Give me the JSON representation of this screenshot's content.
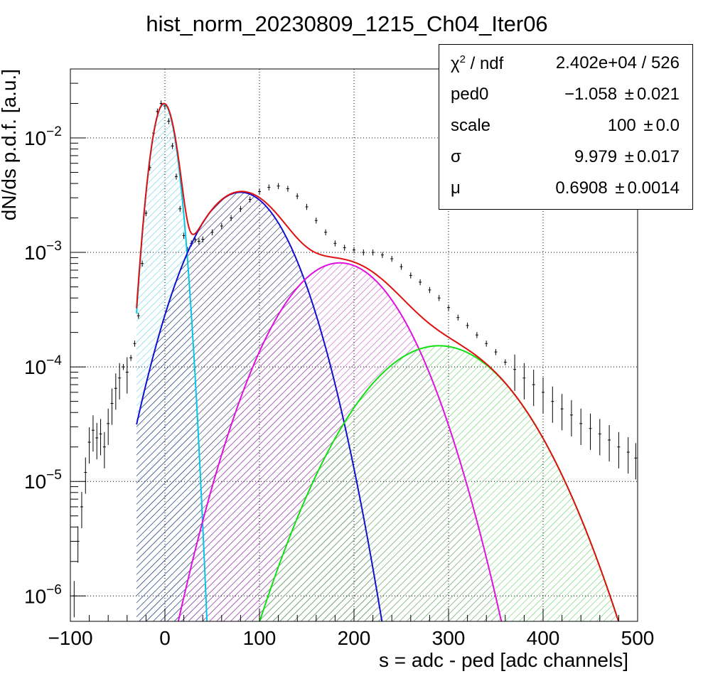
{
  "chart_data": {
    "type": "histogram-fit",
    "title": "hist_norm_20230809_1215_Ch04_Iter06",
    "xlabel": "s = adc - ped [adc channels]",
    "ylabel": "dN/ds p.d.f. [a.u.]",
    "xlim": [
      -100,
      500
    ],
    "ylim": [
      6e-07,
      0.04
    ],
    "y_scale": "log",
    "grid": true,
    "x_ticks": [
      "−100",
      "0",
      "100",
      "200",
      "300",
      "400",
      "500"
    ],
    "x_tick_values": [
      -100,
      0,
      100,
      200,
      300,
      400,
      500
    ],
    "y_ticks": [
      {
        "value": 0.01,
        "mantissa": "10",
        "exp": "−2"
      },
      {
        "value": 0.001,
        "mantissa": "10",
        "exp": "−3"
      },
      {
        "value": 0.0001,
        "mantissa": "10",
        "exp": "−4"
      },
      {
        "value": 1e-05,
        "mantissa": "10",
        "exp": "−5"
      },
      {
        "value": 1e-06,
        "mantissa": "10",
        "exp": "−6"
      }
    ],
    "stats": [
      {
        "key": "χ",
        "key_sup": "2",
        "key_rest": " / ndf",
        "value": "2.402e+04 / 526",
        "err": ""
      },
      {
        "key": "ped0",
        "key_sup": "",
        "key_rest": "",
        "value": "−1.058",
        "err": "0.021"
      },
      {
        "key": "scale",
        "key_sup": "",
        "key_rest": "",
        "value": "100",
        "err": "0.0"
      },
      {
        "key": "σ",
        "key_sup": "",
        "key_rest": "",
        "value": "9.979",
        "err": "0.017"
      },
      {
        "key": "μ",
        "key_sup": "",
        "key_rest": "",
        "value": "0.6908",
        "err": "0.0014"
      }
    ],
    "data_points": [
      [
        -96,
        1e-06
      ],
      [
        -92,
        3e-06
      ],
      [
        -88,
        6e-06
      ],
      [
        -84,
        1.2e-05
      ],
      [
        -80,
        2.2e-05
      ],
      [
        -76,
        2.8e-05
      ],
      [
        -72,
        2.4e-05
      ],
      [
        -68,
        2.6e-05
      ],
      [
        -64,
        2e-05
      ],
      [
        -60,
        3.2e-05
      ],
      [
        -56,
        4.8e-05
      ],
      [
        -52,
        6.5e-05
      ],
      [
        -48,
        8e-05
      ],
      [
        -44,
        0.0001
      ],
      [
        -40,
        9e-05
      ],
      [
        -36,
        0.00012
      ],
      [
        -32,
        0.00016
      ],
      [
        -28,
        0.00028
      ],
      [
        -24,
        0.0008
      ],
      [
        -20,
        0.0022
      ],
      [
        -16,
        0.0055
      ],
      [
        -12,
        0.011
      ],
      [
        -8,
        0.017
      ],
      [
        -4,
        0.02
      ],
      [
        0,
        0.019
      ],
      [
        4,
        0.014
      ],
      [
        8,
        0.0085
      ],
      [
        12,
        0.0046
      ],
      [
        16,
        0.0024
      ],
      [
        20,
        0.0014
      ],
      [
        24,
        0.00105
      ],
      [
        28,
        0.0012
      ],
      [
        32,
        0.0013
      ],
      [
        36,
        0.00125
      ],
      [
        40,
        0.0013
      ],
      [
        50,
        0.0015
      ],
      [
        60,
        0.0017
      ],
      [
        70,
        0.002
      ],
      [
        80,
        0.0024
      ],
      [
        90,
        0.0029
      ],
      [
        100,
        0.0034
      ],
      [
        110,
        0.0037
      ],
      [
        120,
        0.0038
      ],
      [
        130,
        0.0036
      ],
      [
        140,
        0.0031
      ],
      [
        150,
        0.0025
      ],
      [
        160,
        0.0019
      ],
      [
        170,
        0.0015
      ],
      [
        180,
        0.0012
      ],
      [
        190,
        0.0011
      ],
      [
        200,
        0.00105
      ],
      [
        210,
        0.001
      ],
      [
        220,
        0.001
      ],
      [
        230,
        0.00095
      ],
      [
        240,
        0.00088
      ],
      [
        250,
        0.00075
      ],
      [
        260,
        0.00063
      ],
      [
        270,
        0.00055
      ],
      [
        280,
        0.00047
      ],
      [
        290,
        0.0004
      ],
      [
        300,
        0.00033
      ],
      [
        310,
        0.00027
      ],
      [
        320,
        0.00023
      ],
      [
        330,
        0.00019
      ],
      [
        340,
        0.00016
      ],
      [
        350,
        0.000135
      ],
      [
        360,
        0.00011
      ],
      [
        370,
        9.5e-05
      ],
      [
        380,
        8e-05
      ],
      [
        390,
        7e-05
      ],
      [
        400,
        6e-05
      ],
      [
        410,
        5e-05
      ],
      [
        420,
        4.3e-05
      ],
      [
        430,
        3.8e-05
      ],
      [
        440,
        3.2e-05
      ],
      [
        450,
        2.9e-05
      ],
      [
        460,
        2.6e-05
      ],
      [
        470,
        2.3e-05
      ],
      [
        480,
        2e-05
      ],
      [
        490,
        1.8e-05
      ],
      [
        498,
        1.6e-05
      ]
    ],
    "components": [
      {
        "color": "#00c8e6",
        "hatch": "#5fd4e8",
        "amp": 0.0197,
        "mean": -1.058,
        "sigma": 9.979
      },
      {
        "color": "#1010d0",
        "hatch": "#1c1c60",
        "amp": 0.00335,
        "mean": 80,
        "sigma": 36
      },
      {
        "color": "#e010e0",
        "hatch": "#c050c0",
        "amp": 0.00081,
        "mean": 185,
        "sigma": 45
      },
      {
        "color": "#10e010",
        "hatch": "#60d060",
        "amp": 0.000153,
        "mean": 290,
        "sigma": 57
      }
    ],
    "total_fit": {
      "color": "#e01010",
      "x_start": -30
    }
  }
}
